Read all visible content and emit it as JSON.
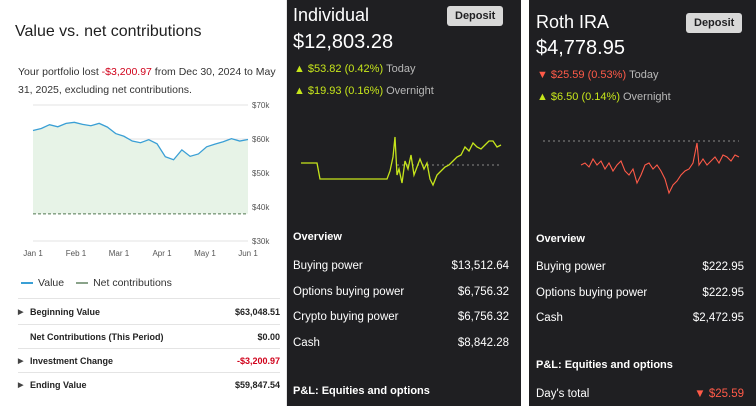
{
  "left": {
    "title": "Value vs. net contributions",
    "desc_prefix": "Your portfolio lost ",
    "desc_amount": "-$3,200.97",
    "desc_suffix": " from Dec 30, 2024 to May 31, 2025, excluding net contributions.",
    "legend": {
      "value": "Value",
      "net": "Net contributions"
    },
    "summary": [
      {
        "label": "Beginning Value",
        "value": "$63,048.51",
        "caret": true
      },
      {
        "label": "Net Contributions (This Period)",
        "value": "$0.00",
        "caret": false
      },
      {
        "label": "Investment Change",
        "value": "-$3,200.97",
        "caret": true
      },
      {
        "label": "Ending Value",
        "value": "$59,847.54",
        "caret": true
      }
    ],
    "chart_data": {
      "type": "area",
      "title": "",
      "x": [
        "Dec 30",
        "Jan 1",
        "Jan 8",
        "Jan 15",
        "Jan 22",
        "Jan 29",
        "Feb 1",
        "Feb 8",
        "Feb 15",
        "Feb 22",
        "Mar 1",
        "Mar 8",
        "Mar 15",
        "Mar 22",
        "Mar 29",
        "Apr 1",
        "Apr 4",
        "Apr 8",
        "Apr 10",
        "Apr 15",
        "Apr 22",
        "Apr 29",
        "May 1",
        "May 8",
        "May 15",
        "May 22",
        "May 31"
      ],
      "series": [
        {
          "name": "Value",
          "color": "#3a9fd5",
          "values": [
            62500,
            63100,
            64200,
            63600,
            64600,
            64900,
            64300,
            63900,
            64600,
            63500,
            61600,
            60800,
            59400,
            58900,
            59800,
            58600,
            54800,
            53900,
            56800,
            54900,
            55600,
            57700,
            58500,
            59200,
            60100,
            59400,
            59850
          ]
        },
        {
          "name": "Net contributions",
          "color": "#7c9a7c",
          "values": [
            38000,
            38000,
            38000,
            38000,
            38000,
            38000,
            38000,
            38000,
            38000,
            38000,
            38000,
            38000,
            38000,
            38000,
            38000,
            38000,
            38000,
            38000,
            38000,
            38000,
            38000,
            38000,
            38000,
            38000,
            38000,
            38000,
            38000
          ]
        }
      ],
      "x_ticks": [
        "Jan 1",
        "Feb 1",
        "Mar 1",
        "Apr 1",
        "May 1",
        "Jun 1"
      ],
      "y_ticks": [
        "$70k",
        "$60k",
        "$50k",
        "$40k",
        "$30k"
      ],
      "ylim": [
        30000,
        70000
      ]
    }
  },
  "individual": {
    "name": "Individual",
    "value": "$12,803.28",
    "deposit_label": "Deposit",
    "today_arrow": "▲",
    "today_change": "$53.82 (0.42%)",
    "today_label": "Today",
    "overnight_arrow": "▲",
    "overnight_change": "$19.93 (0.16%)",
    "overnight_label": "Overnight",
    "overview_title": "Overview",
    "overview": [
      {
        "label": "Buying power",
        "value": "$13,512.64"
      },
      {
        "label": "Options buying power",
        "value": "$6,756.32"
      },
      {
        "label": "Crypto buying power",
        "value": "$6,756.32"
      },
      {
        "label": "Cash",
        "value": "$8,842.28"
      }
    ],
    "pl_title": "P&L: Equities and options",
    "colors": {
      "up": "#c6e51b"
    }
  },
  "roth": {
    "name": "Roth IRA",
    "value": "$4,778.95",
    "deposit_label": "Deposit",
    "today_arrow": "▼",
    "today_change": "$25.59 (0.53%)",
    "today_label": "Today",
    "overnight_arrow": "▲",
    "overnight_change": "$6.50 (0.14%)",
    "overnight_label": "Overnight",
    "overview_title": "Overview",
    "overview": [
      {
        "label": "Buying power",
        "value": "$222.95"
      },
      {
        "label": "Options buying power",
        "value": "$222.95"
      },
      {
        "label": "Cash",
        "value": "$2,472.95"
      }
    ],
    "pl_title": "P&L: Equities and options",
    "days_total_label": "Day's total",
    "days_total_arrow": "▼",
    "days_total_value": "$25.59",
    "colors": {
      "down": "#ff5a48"
    }
  }
}
